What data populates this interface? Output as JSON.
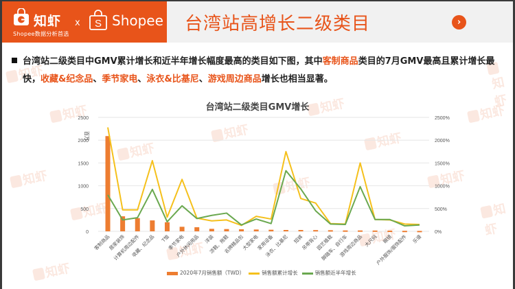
{
  "header": {
    "brand_name": "知虾",
    "brand_subtitle": "Shopee数据分析首选",
    "cross": "x",
    "partner": "Shopee",
    "title": "台湾站高增长二级类目",
    "next_icon": "chevron-right-circle"
  },
  "body": {
    "paragraph": [
      {
        "text": "台湾站二级类目中GMV累计增长和近半年增长幅度最高的类目如下图，其中",
        "hl": false
      },
      {
        "text": "客制商品",
        "hl": true
      },
      {
        "text": "类目的7月GMV最高且累计增长最快，",
        "hl": false
      },
      {
        "text": "收藏&纪念品",
        "hl": true
      },
      {
        "text": "、",
        "hl": false
      },
      {
        "text": "季节家电",
        "hl": true
      },
      {
        "text": "、",
        "hl": false
      },
      {
        "text": "泳衣&比基尼",
        "hl": true
      },
      {
        "text": "、",
        "hl": false
      },
      {
        "text": "游戏周边商品",
        "hl": true
      },
      {
        "text": "增长也相当显著。",
        "hl": false
      }
    ]
  },
  "colors": {
    "brand": "#e8541a",
    "bar": "#ed7d31",
    "cumulative": "#f5c01b",
    "half_year": "#6aa84f",
    "grid": "#e6e6e6",
    "axis_text": "#555555"
  },
  "chart_data": {
    "type": "bar",
    "title": "台湾站二级类目GMV增长",
    "ylabel": "百万",
    "ylim": [
      0,
      2500
    ],
    "y2lim": [
      0,
      2500
    ],
    "yticks": [
      0,
      500,
      1000,
      1500,
      2000,
      2500
    ],
    "y2ticks": [
      "0%",
      "500%",
      "1000%",
      "1500%",
      "2000%",
      "2500%"
    ],
    "grid": true,
    "legend_position": "bottom",
    "categories": [
      "客制商品",
      "居家装饰",
      "计算机周边配件",
      "收藏、纪念品",
      "T恤",
      "季节家电",
      "户外休闲用品",
      "洋装",
      "凉鞋、拖鞋",
      "名牌精品包",
      "大型家电",
      "家用设备",
      "泳衣、比基尼",
      "短裤",
      "吊带背心",
      "园艺植栽",
      "脚踏车、自行车",
      "游戏周边商品",
      "大尺码",
      "眼镜",
      "户外服饰/服饰配件",
      "乐谱"
    ],
    "series": [
      {
        "name": "2020年7月销售额（TWD）",
        "type": "bar",
        "axis": "left",
        "values": [
          2090,
          330,
          290,
          240,
          200,
          100,
          90,
          55,
          50,
          45,
          40,
          35,
          30,
          30,
          28,
          25,
          20,
          20,
          18,
          15,
          12,
          10
        ]
      },
      {
        "name": "销售额累计增长",
        "type": "line",
        "axis": "right",
        "unit": "%",
        "values": [
          2280,
          470,
          470,
          1550,
          310,
          1140,
          290,
          230,
          250,
          130,
          330,
          270,
          1750,
          720,
          620,
          170,
          160,
          1500,
          260,
          250,
          160,
          150
        ]
      },
      {
        "name": "销售额近半年增长",
        "type": "line",
        "axis": "right",
        "unit": "%",
        "values": [
          800,
          250,
          300,
          920,
          210,
          560,
          280,
          350,
          400,
          140,
          270,
          170,
          1330,
          930,
          450,
          160,
          150,
          980,
          260,
          260,
          120,
          140
        ]
      }
    ]
  }
}
